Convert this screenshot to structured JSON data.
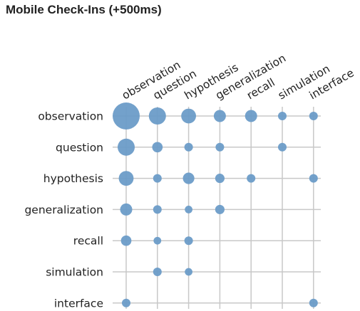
{
  "chart_data": {
    "type": "scatter",
    "title": "Mobile Check-Ins (+500ms)",
    "rows": [
      "observation",
      "question",
      "hypothesis",
      "generalization",
      "recall",
      "simulation",
      "interface"
    ],
    "columns": [
      "observation",
      "question",
      "hypothesis",
      "generalization",
      "recall",
      "simulation",
      "interface"
    ],
    "values": [
      [
        10,
        4,
        3,
        2,
        2,
        1,
        1
      ],
      [
        4,
        1.5,
        1,
        1,
        0,
        1,
        0
      ],
      [
        3,
        1,
        1.8,
        1.2,
        1,
        0,
        1
      ],
      [
        2,
        1,
        0.8,
        1.2,
        0,
        0,
        0
      ],
      [
        1.5,
        0.8,
        1,
        0,
        0,
        0,
        0
      ],
      [
        0,
        1,
        0.8,
        0,
        0,
        0,
        0
      ],
      [
        1,
        0,
        0,
        0,
        0,
        0,
        1
      ]
    ],
    "grid": true,
    "color": "#6b9cc8"
  }
}
